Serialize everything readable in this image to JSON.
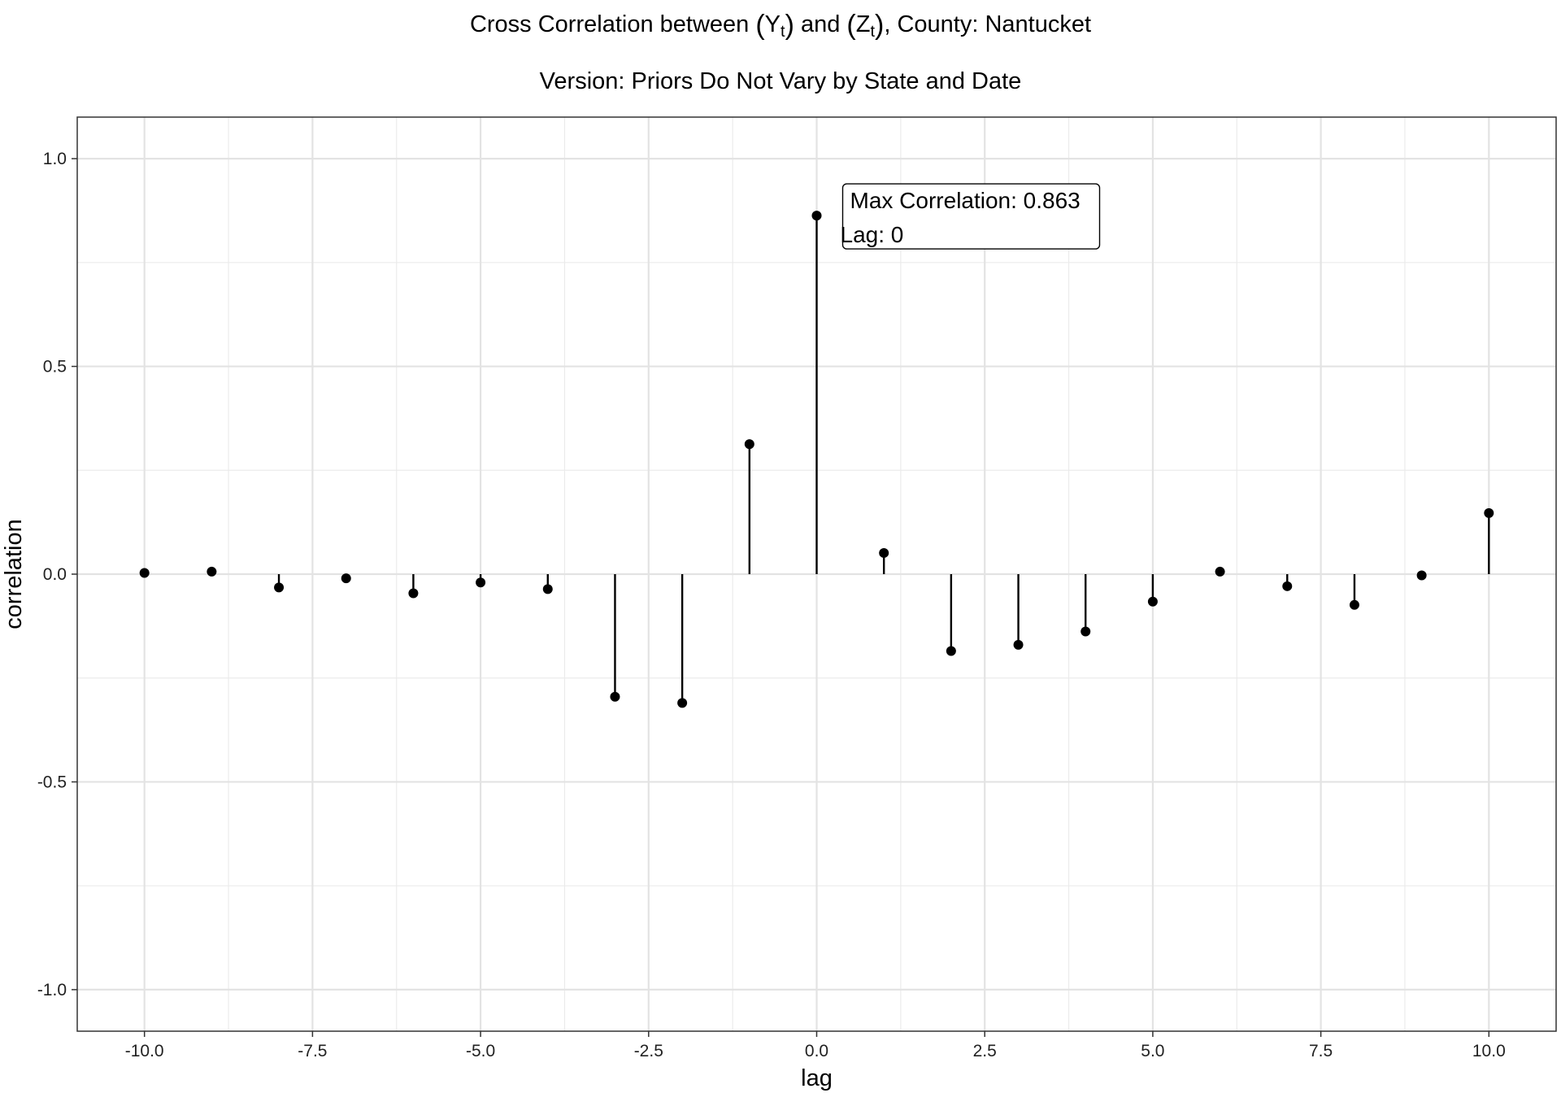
{
  "chart_data": {
    "type": "lollipop",
    "title": {
      "prefix": "Cross Correlation between ",
      "y_symbol": "Y",
      "z_symbol": "Z",
      "subscript": "t",
      "and_text": " and ",
      "suffix": ", County: Nantucket"
    },
    "subtitle": "Version: Priors Do Not Vary by State and Date",
    "xlabel": "lag",
    "ylabel": "correlation",
    "xlim": [
      -11,
      11
    ],
    "ylim": [
      -1.1,
      1.1
    ],
    "x_ticks": [
      -10,
      -7.5,
      -5,
      -2.5,
      0,
      2.5,
      5,
      7.5,
      10
    ],
    "x_tick_labels": [
      "-10.0",
      "-7.5",
      "-5.0",
      "-2.5",
      "0.0",
      "2.5",
      "5.0",
      "7.5",
      "10.0"
    ],
    "y_ticks": [
      -1,
      -0.5,
      0,
      0.5,
      1
    ],
    "y_tick_labels": [
      "-1.0",
      "-0.5",
      "0.0",
      "0.5",
      "1.0"
    ],
    "grid": true,
    "series": [
      {
        "x": [
          -10,
          -9,
          -8,
          -7,
          -6,
          -5,
          -4,
          -3,
          -2,
          -1,
          0,
          1,
          2,
          3,
          4,
          5,
          6,
          7,
          8,
          9,
          10
        ],
        "y": [
          0.003,
          0.006,
          -0.032,
          -0.01,
          -0.046,
          -0.02,
          -0.036,
          -0.295,
          -0.31,
          0.313,
          0.863,
          0.051,
          -0.185,
          -0.17,
          -0.138,
          -0.066,
          0.006,
          -0.029,
          -0.074,
          -0.003,
          0.147
        ]
      }
    ],
    "annotation": {
      "lines": [
        "Max Correlation: 0.863",
        "Lag: 0"
      ],
      "x": 0,
      "y": 0.863
    }
  }
}
